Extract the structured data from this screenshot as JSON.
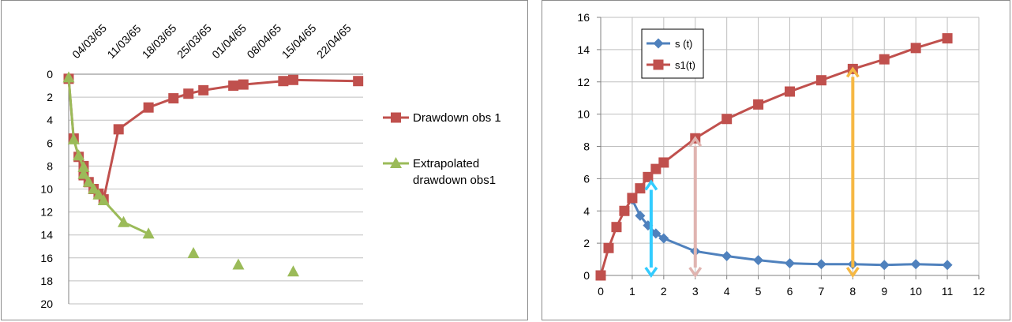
{
  "colors": {
    "drawdown": "#C0504D",
    "extrapolated": "#9BBB59",
    "s": "#4F81BD",
    "s1": "#C0504D",
    "arrow1": "#33CCFF",
    "arrow2": "#E0B4B0",
    "arrow3": "#F6B843",
    "grid": "#BFBFBF",
    "axis": "#808080"
  },
  "chart_data": [
    {
      "type": "line",
      "title": "",
      "xlabel": "",
      "ylabel": "",
      "x_axis_position": "top",
      "y_reversed": true,
      "ylim": [
        0,
        20
      ],
      "yticks": [
        "0",
        "2",
        "4",
        "6",
        "8",
        "10",
        "12",
        "14",
        "16",
        "18",
        "20"
      ],
      "xticks": [
        "04/03/65",
        "11/03/65",
        "18/03/65",
        "25/03/65",
        "01/04/65",
        "08/04/65",
        "15/04/65",
        "22/04/65"
      ],
      "grid": "horizontal",
      "legend_position": "right",
      "series": [
        {
          "name": "Drawdown obs 1",
          "marker": "square",
          "line": true,
          "points": [
            [
              "1965-03-03",
              0.4
            ],
            [
              "1965-03-04",
              5.6
            ],
            [
              "1965-03-05",
              7.2
            ],
            [
              "1965-03-06",
              8.0
            ],
            [
              "1965-03-06",
              8.8
            ],
            [
              "1965-03-07",
              9.4
            ],
            [
              "1965-03-08",
              10.0
            ],
            [
              "1965-03-09",
              10.4
            ],
            [
              "1965-03-10",
              10.9
            ],
            [
              "1965-03-13",
              4.8
            ],
            [
              "1965-03-19",
              2.9
            ],
            [
              "1965-03-24",
              2.1
            ],
            [
              "1965-03-27",
              1.7
            ],
            [
              "1965-03-30",
              1.4
            ],
            [
              "1965-04-05",
              1.0
            ],
            [
              "1965-04-07",
              0.9
            ],
            [
              "1965-04-15",
              0.6
            ],
            [
              "1965-04-17",
              0.5
            ],
            [
              "1965-04-30",
              0.6
            ]
          ]
        },
        {
          "name": "Extrapolated drawdown obs1",
          "legend_lines": [
            "Extrapolated",
            "drawdown obs1"
          ],
          "marker": "triangle",
          "line": true,
          "points": [
            [
              "1965-03-03",
              0.3
            ],
            [
              "1965-03-04",
              5.7
            ],
            [
              "1965-03-05",
              7.1
            ],
            [
              "1965-03-06",
              8.1
            ],
            [
              "1965-03-06",
              8.7
            ],
            [
              "1965-03-07",
              9.4
            ],
            [
              "1965-03-08",
              10.0
            ],
            [
              "1965-03-09",
              10.5
            ],
            [
              "1965-03-10",
              11.0
            ],
            [
              "1965-03-14",
              12.9
            ],
            [
              "1965-03-19",
              13.9
            ]
          ],
          "unconnected_points": [
            [
              "1965-03-28",
              15.6
            ],
            [
              "1965-04-06",
              16.6
            ],
            [
              "1965-04-17",
              17.2
            ]
          ]
        }
      ]
    },
    {
      "type": "line",
      "title": "",
      "xlabel": "",
      "ylabel": "",
      "xlim": [
        0,
        12
      ],
      "ylim": [
        0,
        16
      ],
      "xticks": [
        "0",
        "1",
        "2",
        "3",
        "4",
        "5",
        "6",
        "7",
        "8",
        "9",
        "10",
        "11",
        "12"
      ],
      "yticks": [
        "0",
        "2",
        "4",
        "6",
        "8",
        "10",
        "12",
        "14",
        "16"
      ],
      "grid": "both",
      "legend_position": "top-left",
      "series": [
        {
          "name": "s (t)",
          "marker": "diamond",
          "x": [
            1,
            1.25,
            1.5,
            1.75,
            2,
            3,
            4,
            5,
            6,
            7,
            8,
            9,
            10,
            11
          ],
          "y": [
            4.7,
            3.7,
            3.1,
            2.6,
            2.3,
            1.5,
            1.2,
            0.95,
            0.75,
            0.7,
            0.7,
            0.65,
            0.7,
            0.65
          ]
        },
        {
          "name": "s1(t)",
          "marker": "square",
          "x": [
            0,
            0.25,
            0.5,
            0.75,
            1,
            1.25,
            1.5,
            1.75,
            2,
            3,
            4,
            5,
            6,
            7,
            8,
            9,
            10,
            11
          ],
          "y": [
            0,
            1.7,
            3.0,
            4.0,
            4.8,
            5.4,
            6.1,
            6.6,
            7.0,
            8.5,
            9.7,
            10.6,
            11.4,
            12.1,
            12.8,
            13.4,
            14.1,
            14.7
          ]
        }
      ],
      "annotations": [
        {
          "type": "double-arrow",
          "x": 1.6,
          "y_from": 0,
          "y_to": 5.8,
          "color": "#33CCFF"
        },
        {
          "type": "double-arrow",
          "x": 3,
          "y_from": 0,
          "y_to": 8.5,
          "color": "#E0B4B0"
        },
        {
          "type": "double-arrow",
          "x": 8,
          "y_from": 0,
          "y_to": 12.8,
          "color": "#F6B843"
        }
      ]
    }
  ]
}
